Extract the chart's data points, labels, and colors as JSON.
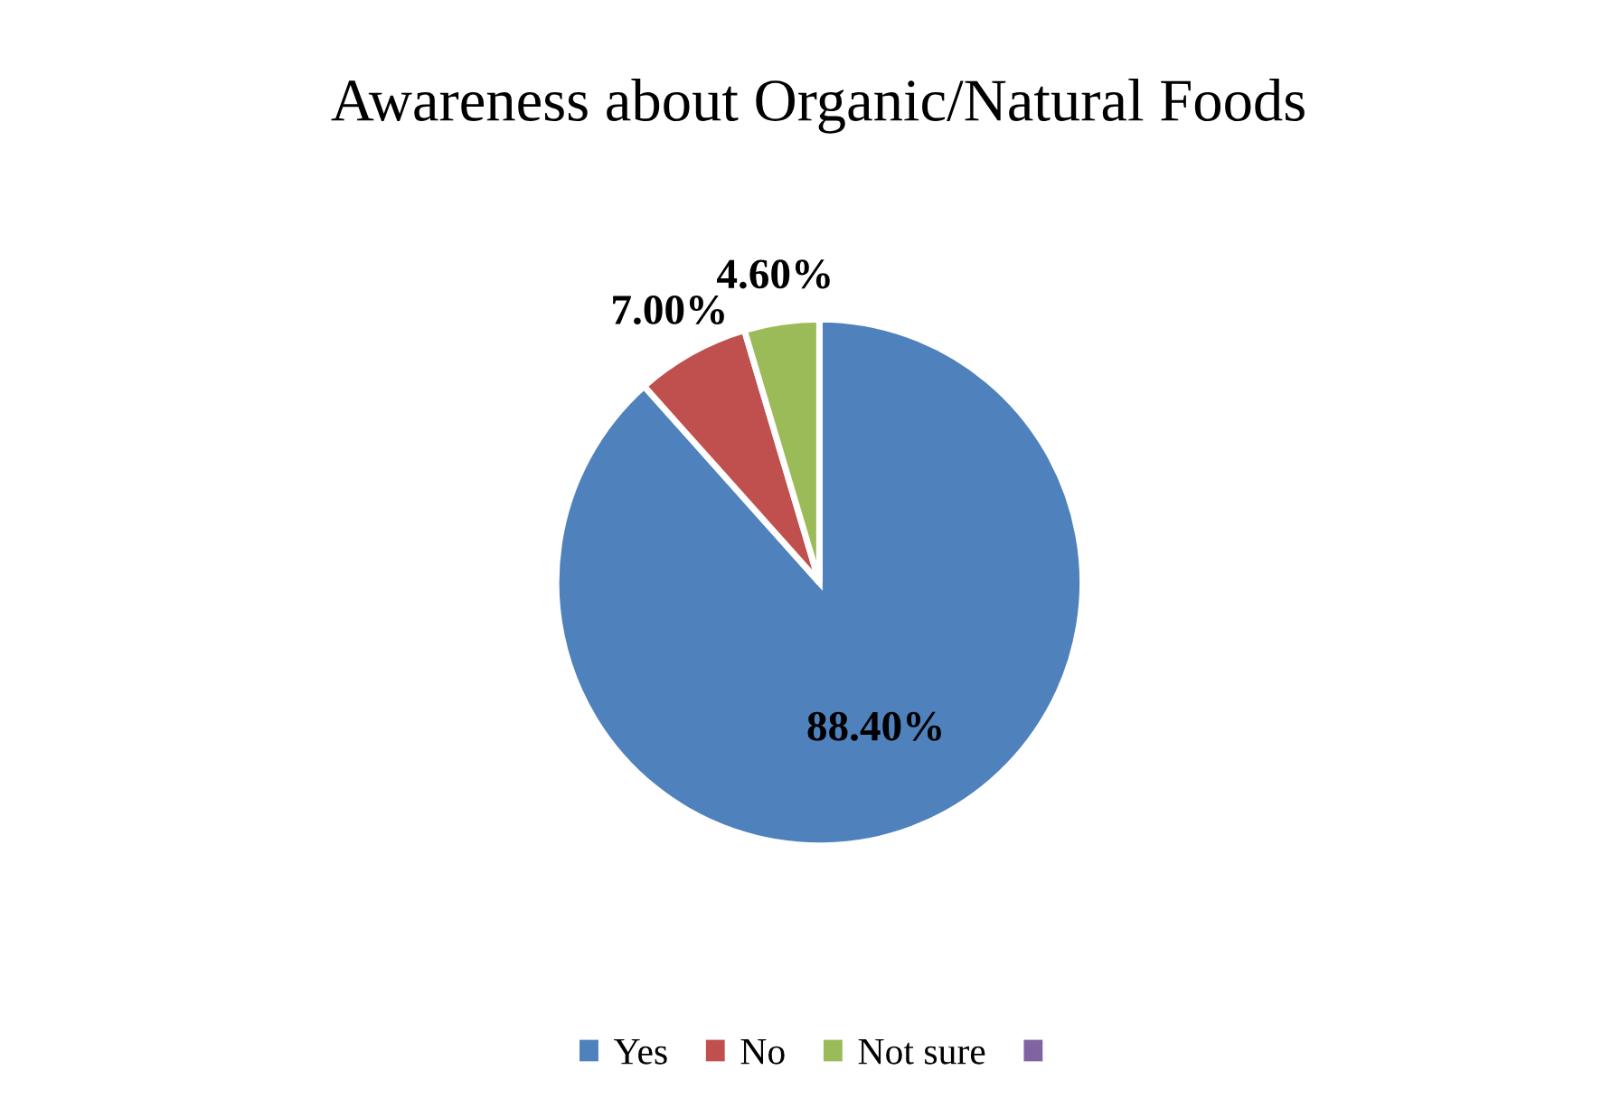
{
  "chart_data": {
    "type": "pie",
    "title": "Awareness about Organic/Natural Foods",
    "categories": [
      "Yes",
      "No",
      "Not sure",
      null
    ],
    "values": [
      88.4,
      7.0,
      4.6,
      0
    ],
    "colors": [
      "#4f81bd",
      "#c0504d",
      "#9bbb59",
      "#8064a2"
    ],
    "value_labels": [
      "88.40%",
      "7.00%",
      "4.60%",
      null
    ],
    "legend": "bottom"
  }
}
